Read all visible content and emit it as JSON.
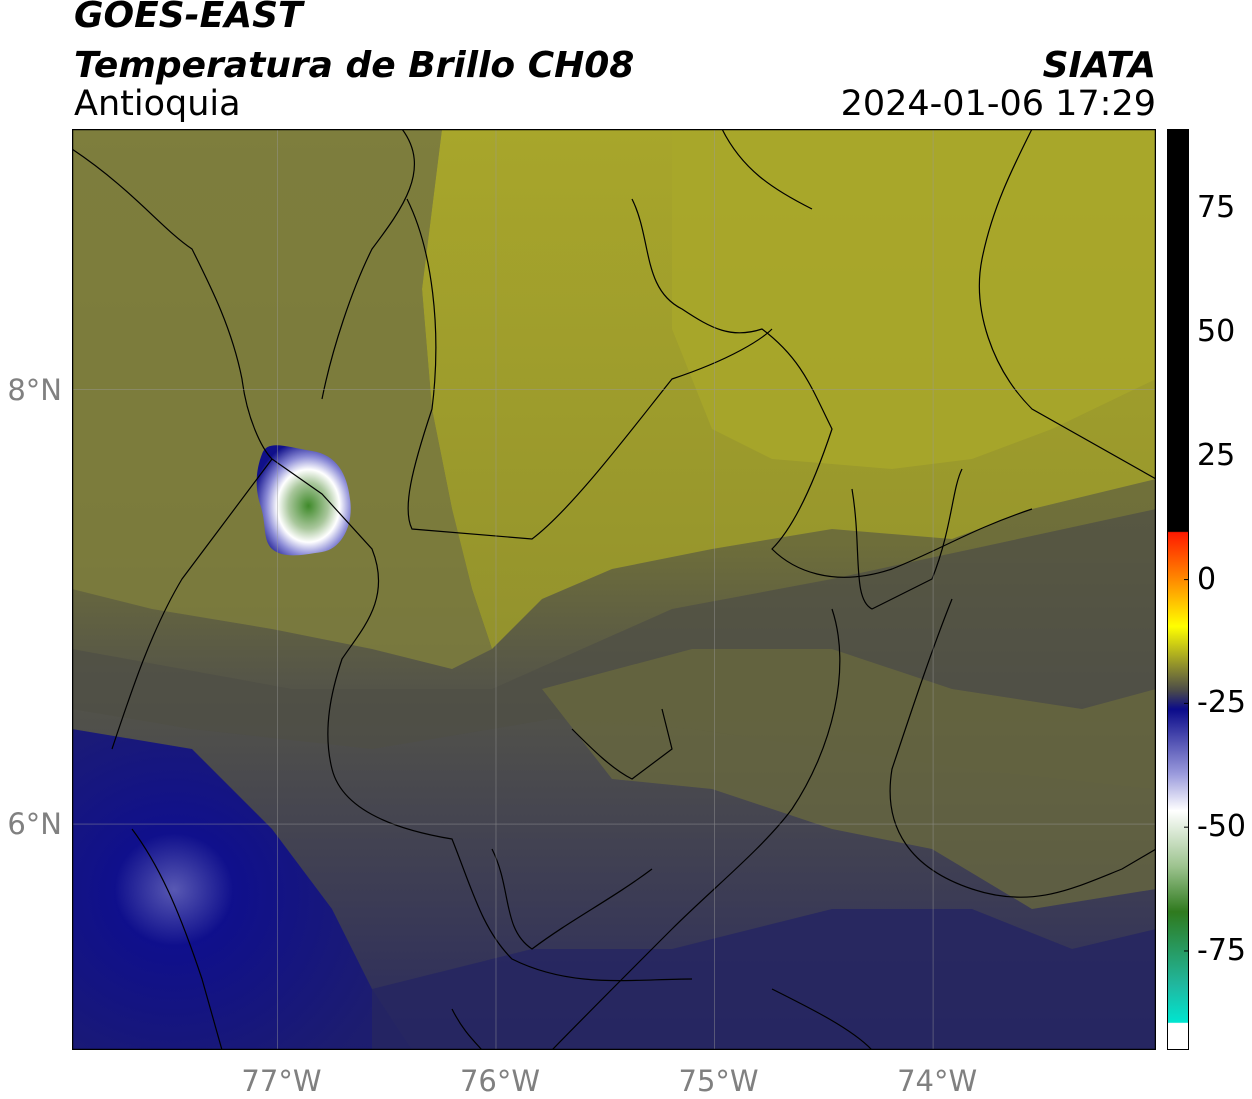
{
  "header": {
    "satellite": "GOES-EAST",
    "product": "Temperatura de Brillo CH08",
    "region": "Antioquia",
    "agency": "SIATA",
    "datetime": "2024-01-06 17:29"
  },
  "map": {
    "lon_range": [
      -77.94,
      -72.98
    ],
    "lat_range": [
      4.96,
      9.2
    ],
    "lon_ticks": [
      "77°W",
      "76°W",
      "75°W",
      "74°W"
    ],
    "lon_tick_values": [
      -77,
      -76,
      -75,
      -74
    ],
    "lat_ticks": [
      "8°N",
      "6°N"
    ],
    "lat_tick_values": [
      8,
      6
    ],
    "grid": true
  },
  "colorbar": {
    "units_label": "",
    "tick_labels": [
      "75",
      "50",
      "25",
      "0",
      "-25",
      "-50",
      "-75"
    ],
    "tick_values": [
      75,
      50,
      25,
      0,
      -25,
      -50,
      -75
    ],
    "range": [
      -95,
      91
    ],
    "colors": {
      "warm_black": "#000000",
      "red": "#ff1a00",
      "orange": "#ff8c00",
      "yellow": "#ffff00",
      "olive": "#8a8a2e",
      "gray": "#4a4a4a",
      "navy": "#0b0b8a",
      "white": "#ffffff",
      "green": "#2f7a1e",
      "teal": "#00e5d0"
    }
  }
}
